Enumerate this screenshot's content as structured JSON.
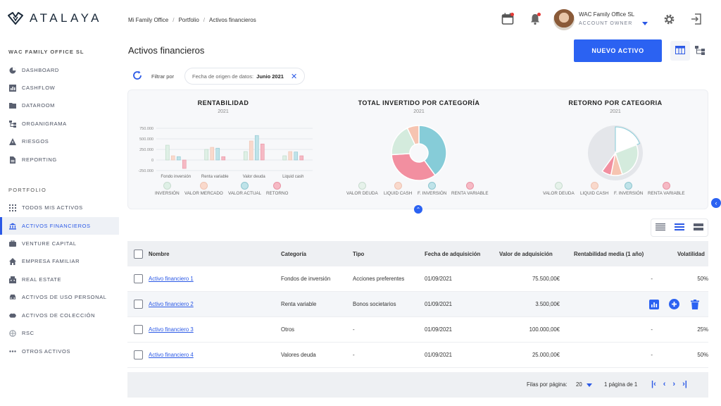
{
  "app": {
    "brand": "ATALAYA"
  },
  "sidebar": {
    "org_title": "WAC FAMILY OFFICE SL",
    "items": [
      {
        "label": "DASHBOARD",
        "icon": "pie-chart-icon"
      },
      {
        "label": "CASHFLOW",
        "icon": "bar-chart-icon"
      },
      {
        "label": "DATAROOM",
        "icon": "folder-icon"
      },
      {
        "label": "ORGANIGRAMA",
        "icon": "org-chart-icon"
      },
      {
        "label": "RIESGOS",
        "icon": "warning-icon"
      },
      {
        "label": "REPORTING",
        "icon": "document-icon"
      }
    ],
    "portfolio_title": "PORTFOLIO",
    "portfolio_items": [
      {
        "label": "TODOS MIS ACTIVOS",
        "icon": "grid-icon"
      },
      {
        "label": "ACTIVOS FINANCIEROS",
        "icon": "bank-icon",
        "active": true
      },
      {
        "label": "VENTURE CAPITAL",
        "icon": "briefcase-icon"
      },
      {
        "label": "EMPRESA FAMILIAR",
        "icon": "house-icon"
      },
      {
        "label": "REAL ESTATE",
        "icon": "building-icon"
      },
      {
        "label": "ACTIVOS DE USO PERSONAL",
        "icon": "car-icon"
      },
      {
        "label": "ACTIVOS DE COLECCIÓN",
        "icon": "collection-icon"
      },
      {
        "label": "RSC",
        "icon": "globe-icon"
      },
      {
        "label": "OTROS ACTIVOS",
        "icon": "more-icon"
      }
    ]
  },
  "header": {
    "breadcrumb": [
      "Mi Family Office",
      "Portfolio",
      "Activos financieros"
    ],
    "user_name": "WAC Family Office SL",
    "user_role": "ACCOUNT OWNER"
  },
  "page": {
    "title": "Activos financieros",
    "new_button": "NUEVO ACTIVO",
    "filter_label": "Filtrar por",
    "filter_chip_key": "Fecha de origen de datos:",
    "filter_chip_value": "Junio 2021"
  },
  "colors": {
    "accent": "#2b62f2",
    "teal": "#7ecbd6",
    "pink": "#f08a9c",
    "peach": "#f6c3b0",
    "mint": "#cfe9d9",
    "grey": "#e4e6ea"
  },
  "charts": {
    "rentabilidad": {
      "title": "RENTABILIDAD",
      "year": "2021"
    },
    "total": {
      "title": "TOTAL INVERTIDO POR CATEGORÍA",
      "year": "2021"
    },
    "retorno": {
      "title": "RETORNO POR CATEGORIA",
      "year": "2021"
    },
    "legend_bar": [
      "INVERSIÓN",
      "VALOR MERCADO",
      "VALOR ACTUAL",
      "RETORNO"
    ],
    "legend_pie": [
      "VALOR DEUDA",
      "LIQUID CASH",
      "F. INVERSIÓN",
      "RENTA VARIABLE"
    ]
  },
  "chart_data": [
    {
      "type": "bar",
      "title": "RENTABILIDAD",
      "subtitle": "2021",
      "categories": [
        "Fondo inversión",
        "Renta variable",
        "Valor deuda",
        "Liquid cash"
      ],
      "y_ticks": [
        "750.000",
        "500.000",
        "250.000",
        "0",
        "-250.000"
      ],
      "ylim": [
        -250000,
        750000
      ],
      "series": [
        {
          "name": "INVERSIÓN",
          "values": [
            350000,
            250000,
            200000,
            100000
          ]
        },
        {
          "name": "VALOR MERCADO",
          "values": [
            100000,
            300000,
            450000,
            200000
          ]
        },
        {
          "name": "VALOR ACTUAL",
          "values": [
            80000,
            280000,
            580000,
            190000
          ]
        },
        {
          "name": "RETORNO",
          "values": [
            -200000,
            80000,
            380000,
            100000
          ]
        }
      ]
    },
    {
      "type": "pie",
      "title": "TOTAL INVERTIDO POR CATEGORÍA",
      "subtitle": "2021",
      "labels": [
        "F. INVERSIÓN",
        "RENTA VARIABLE",
        "VALOR DEUDA",
        "LIQUID CASH"
      ],
      "values": [
        40,
        34,
        19,
        7
      ]
    },
    {
      "type": "pie",
      "title": "RETORNO POR CATEGORIA",
      "subtitle": "2021",
      "labels": [
        "F. INVERSIÓN",
        "VALOR DEUDA",
        "LIQUID CASH",
        "RENTA VARIABLE"
      ],
      "values": [
        14,
        19,
        6,
        5
      ]
    }
  ],
  "table": {
    "columns": [
      "Nombre",
      "Categoría",
      "Tipo",
      "Fecha de adquisición",
      "Valor de adquisición",
      "Rentabilidad media (1 año)",
      "Volatilidad"
    ],
    "rows": [
      {
        "nombre": "Activo financiero 1",
        "categoria": "Fondos de inversión",
        "tipo": "Acciones preferentes",
        "fecha": "01/09/2021",
        "valor": "75.500,00€",
        "rentabilidad": "-",
        "volatilidad": "50%"
      },
      {
        "nombre": "Activo financiero 2",
        "categoria": "Renta variable",
        "tipo": "Bonos societarios",
        "fecha": "01/09/2021",
        "valor": "3.500,00€",
        "rentabilidad": "",
        "volatilidad": ""
      },
      {
        "nombre": "Activo financiero 3",
        "categoria": "Otros",
        "tipo": "-",
        "fecha": "01/09/2021",
        "valor": "100.000,00€",
        "rentabilidad": "-",
        "volatilidad": "25%"
      },
      {
        "nombre": "Activo financiero 4",
        "categoria": "Valores deuda",
        "tipo": "-",
        "fecha": "01/09/2021",
        "valor": "25.000,00€",
        "rentabilidad": "-",
        "volatilidad": "50%"
      }
    ]
  },
  "pagination": {
    "rows_label": "Filas por página:",
    "rows_value": "20",
    "page_info": "1 página de 1"
  }
}
